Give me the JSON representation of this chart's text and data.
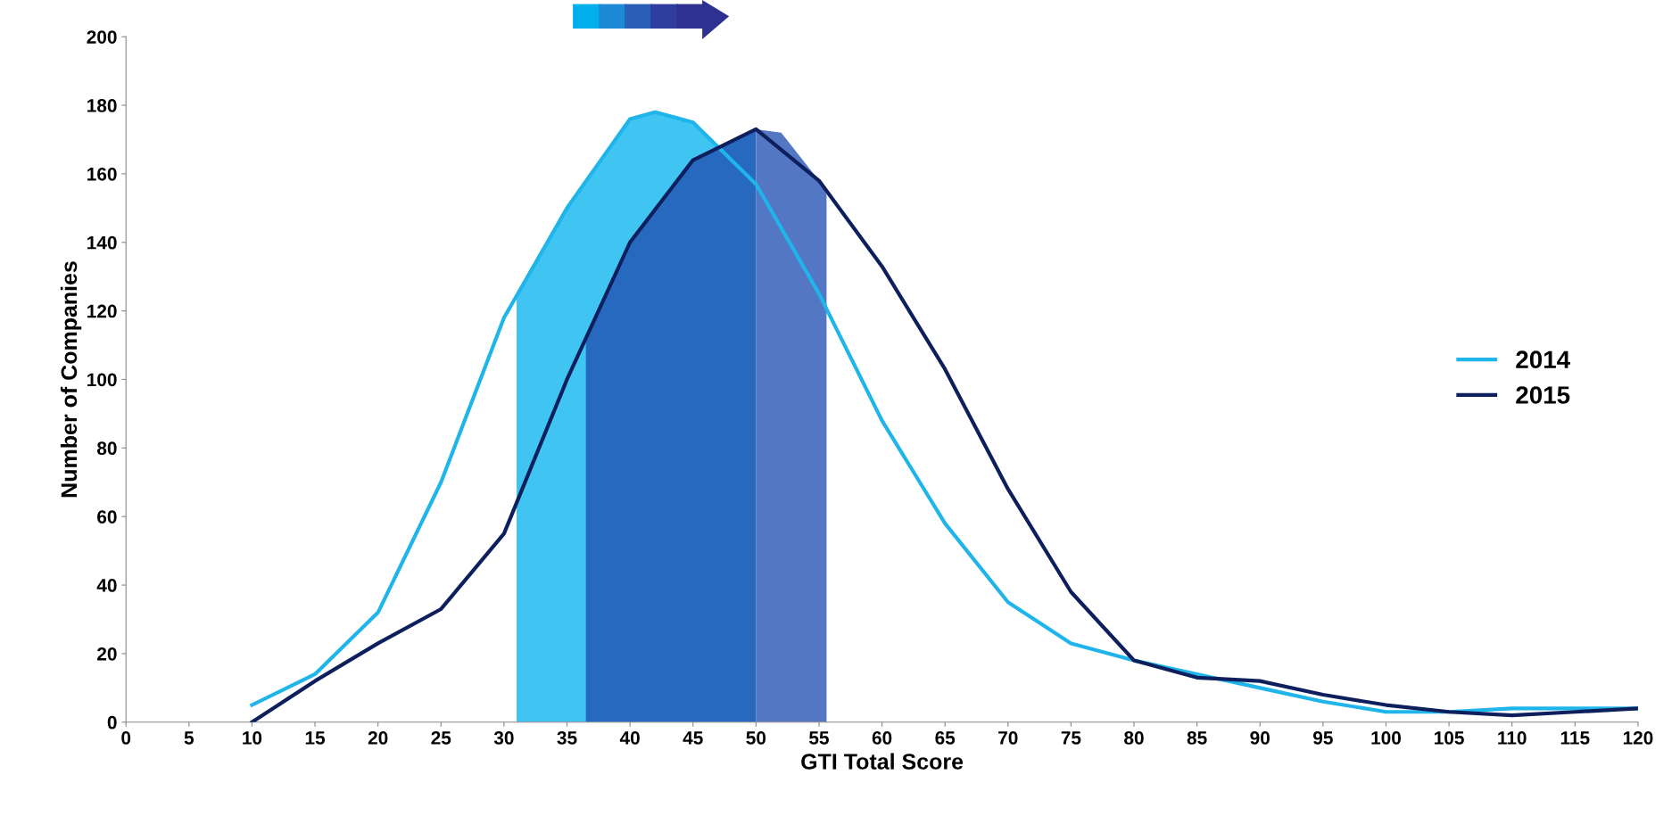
{
  "chart_data": {
    "type": "line",
    "xlabel": "GTI Total Score",
    "ylabel": "Number of Companies",
    "xlim": [
      0,
      120
    ],
    "xticks": [
      0,
      5,
      10,
      15,
      20,
      25,
      30,
      35,
      40,
      45,
      50,
      55,
      60,
      65,
      70,
      75,
      80,
      85,
      90,
      95,
      100,
      105,
      110,
      115,
      120
    ],
    "ylim": [
      0,
      200
    ],
    "yticks": [
      0,
      20,
      40,
      60,
      80,
      100,
      120,
      140,
      160,
      180,
      200
    ],
    "grid": false,
    "legend": "right",
    "marker": "none",
    "line_style": "solid",
    "series": [
      {
        "type": "area",
        "color": "#40c4f2",
        "x": [
          31,
          35,
          40,
          42,
          45,
          50
        ],
        "values": [
          124,
          150,
          176,
          178,
          175,
          157
        ]
      },
      {
        "type": "area",
        "color": "#2869c0",
        "x": [
          36.5,
          40,
          45,
          50
        ],
        "values": [
          113,
          140,
          164,
          173
        ]
      },
      {
        "type": "area",
        "color": "#5477c4",
        "x": [
          50,
          52,
          55,
          55.6
        ],
        "values": [
          173,
          172,
          158,
          154
        ]
      },
      {
        "name": "2014",
        "color": "#1fb5ea",
        "x": [
          10,
          15,
          20,
          25,
          30,
          35,
          40,
          42,
          45,
          50,
          55,
          60,
          65,
          70,
          75,
          80,
          85,
          90,
          95,
          100,
          105,
          110,
          115,
          120
        ],
        "values": [
          5,
          14,
          32,
          70,
          118,
          150,
          176,
          178,
          175,
          157,
          125,
          88,
          58,
          35,
          23,
          18,
          14,
          10,
          6,
          3,
          3,
          4,
          4,
          4
        ]
      },
      {
        "name": "2015",
        "color": "#0d1f5c",
        "x": [
          10,
          15,
          20,
          25,
          30,
          35,
          40,
          45,
          50,
          55,
          60,
          65,
          70,
          75,
          80,
          85,
          90,
          95,
          100,
          105,
          110,
          115,
          120
        ],
        "values": [
          0,
          12,
          23,
          33,
          55,
          100,
          140,
          164,
          173,
          158,
          133,
          103,
          68,
          38,
          18,
          13,
          12,
          8,
          5,
          3,
          2,
          3,
          4
        ]
      }
    ]
  }
}
